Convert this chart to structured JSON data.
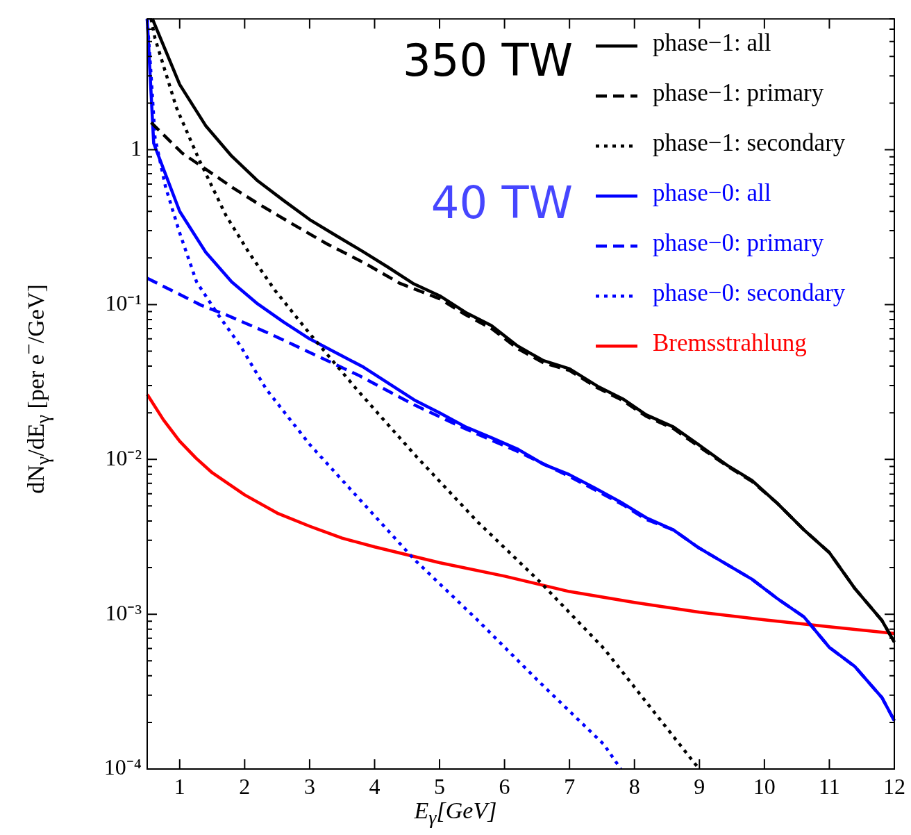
{
  "chart_data": {
    "type": "line",
    "xlabel": "E$_{γ}$[GeV]",
    "ylabel": "dN$_{γ}$/dE$_{γ}$ [per e$^{−}$/GeV]",
    "annotations": [
      "350 TW",
      "40 TW"
    ],
    "log": "y",
    "xlim": [
      0.5,
      12
    ],
    "xticks": [
      1,
      2,
      3,
      4,
      5,
      6,
      7,
      8,
      9,
      10,
      11,
      12
    ],
    "ylim": [
      0.0001,
      7
    ],
    "yticks": [
      {
        "value": 0.0001,
        "label": "10⁻⁴"
      },
      {
        "value": 0.001,
        "label": "10⁻³"
      },
      {
        "value": 0.01,
        "label": "10⁻²"
      },
      {
        "value": 0.1,
        "label": "10⁻¹"
      },
      1
    ],
    "legend": "top right",
    "grid": false,
    "series": [
      {
        "name": "phase−1: all",
        "color": "#000000",
        "line_style": "solid",
        "x": [
          0.58,
          1.0,
          1.4,
          1.8,
          2.2,
          2.6,
          3.0,
          3.4,
          3.82,
          4.2,
          4.59,
          5.0,
          5.4,
          5.8,
          6.2,
          6.6,
          7.0,
          7.43,
          7.82,
          8.18,
          8.6,
          8.98,
          9.42,
          9.81,
          10.2,
          10.61,
          11.0,
          11.39,
          11.81,
          12.0
        ],
        "values": [
          7,
          2.64,
          1.43,
          0.91,
          0.63,
          0.47,
          0.354,
          0.28,
          0.22,
          0.175,
          0.137,
          0.114,
          0.089,
          0.073,
          0.054,
          0.0434,
          0.0385,
          0.0297,
          0.0246,
          0.0194,
          0.0162,
          0.0125,
          0.0092,
          0.0073,
          0.0052,
          0.0035,
          0.0025,
          0.00147,
          0.00091,
          0.00066
        ]
      },
      {
        "name": "phase−1: primary",
        "color": "#000000",
        "line_style": "dashed",
        "x": [
          0.56,
          1.04,
          1.33,
          1.84,
          2.2,
          2.69,
          3.27,
          3.85,
          4.39,
          5.0,
          5.4,
          5.8,
          6.2,
          6.6,
          7.0,
          7.43,
          7.82,
          8.18,
          8.6,
          8.98,
          9.42,
          9.81,
          10.2,
          10.61,
          11.0,
          11.39,
          11.81,
          12.0
        ],
        "values": [
          1.5,
          0.95,
          0.785,
          0.56,
          0.45,
          0.34,
          0.246,
          0.185,
          0.137,
          0.109,
          0.086,
          0.07,
          0.052,
          0.042,
          0.0375,
          0.029,
          0.024,
          0.019,
          0.0158,
          0.0122,
          0.0091,
          0.0072,
          0.0052,
          0.0035,
          0.0025,
          0.00147,
          0.00091,
          0.00066
        ]
      },
      {
        "name": "phase−1: secondary",
        "color": "#000000",
        "line_style": "dotted",
        "x": [
          0.56,
          0.62,
          0.95,
          1.3,
          1.71,
          2.07,
          2.47,
          3.0,
          3.72,
          4.61,
          5.58,
          6.55,
          7.53,
          8.94,
          9.0
        ],
        "values": [
          7,
          5.25,
          1.87,
          0.86,
          0.378,
          0.215,
          0.123,
          0.065,
          0.0285,
          0.0108,
          0.00397,
          0.00161,
          0.0006,
          0.000107,
          0.0001
        ]
      },
      {
        "name": "phase−0: all",
        "color": "#0000ff",
        "line_style": "solid",
        "x": [
          0.5,
          0.6,
          1.0,
          1.4,
          1.8,
          2.2,
          2.6,
          3.0,
          3.4,
          3.83,
          4.61,
          5.0,
          5.39,
          5.8,
          6.21,
          6.6,
          6.99,
          7.4,
          7.82,
          8.18,
          8.6,
          8.98,
          9.42,
          9.81,
          10.2,
          10.61,
          11.0,
          11.39,
          11.81,
          12.0
        ],
        "values": [
          7,
          1.1,
          0.4,
          0.218,
          0.14,
          0.101,
          0.077,
          0.06,
          0.049,
          0.0394,
          0.0242,
          0.02,
          0.0163,
          0.0138,
          0.0116,
          0.0093,
          0.008,
          0.0065,
          0.0052,
          0.0042,
          0.0035,
          0.0027,
          0.0021,
          0.00168,
          0.00126,
          0.00096,
          0.00061,
          0.00046,
          0.000289,
          0.000205
        ]
      },
      {
        "name": "phase−0: primary",
        "color": "#0000ff",
        "line_style": "dashed",
        "x": [
          0.5,
          1.33,
          1.71,
          2.38,
          3.05,
          3.76,
          4.61,
          5.39,
          6.21,
          6.99,
          7.82,
          8.18,
          8.6,
          8.98,
          9.42,
          9.81,
          10.2,
          10.61,
          11.0,
          11.39,
          11.81,
          12.0
        ],
        "values": [
          0.148,
          0.099,
          0.086,
          0.065,
          0.048,
          0.0348,
          0.0225,
          0.0158,
          0.0112,
          0.0078,
          0.0051,
          0.0041,
          0.0035,
          0.0027,
          0.0021,
          0.00168,
          0.00126,
          0.00096,
          0.00061,
          0.00046,
          0.000289,
          0.000205
        ]
      },
      {
        "name": "phase−0: secondary",
        "color": "#0000ff",
        "line_style": "dotted",
        "x": [
          0.5,
          0.55,
          0.62,
          0.78,
          1.0,
          1.26,
          1.58,
          1.93,
          2.33,
          3.0,
          4.61,
          5.58,
          6.55,
          7.53,
          7.79
        ],
        "values": [
          7,
          3.5,
          1.2,
          0.58,
          0.29,
          0.14,
          0.0874,
          0.0544,
          0.0285,
          0.0125,
          0.00226,
          0.00092,
          0.00036,
          0.000144,
          0.0001
        ]
      },
      {
        "name": "Bremsstrahlung",
        "color": "#ff0000",
        "line_style": "solid",
        "x": [
          0.5,
          0.75,
          1,
          1.25,
          1.5,
          2,
          2.5,
          3,
          3.5,
          4,
          5,
          6,
          7,
          8,
          9,
          10,
          11,
          12
        ],
        "values": [
          0.0263,
          0.018,
          0.0131,
          0.0102,
          0.0082,
          0.0059,
          0.0045,
          0.0037,
          0.0031,
          0.00272,
          0.00215,
          0.00176,
          0.0014,
          0.00119,
          0.00103,
          0.00092,
          0.00083,
          0.00075
        ]
      }
    ]
  }
}
